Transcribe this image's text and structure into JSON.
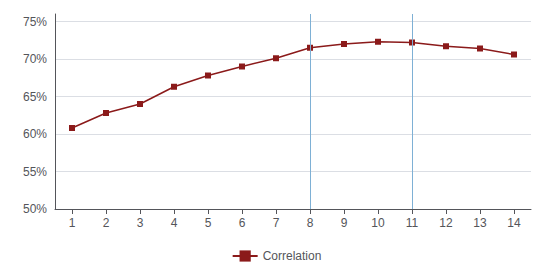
{
  "chart_data": {
    "type": "line",
    "x": [
      1,
      2,
      3,
      4,
      5,
      6,
      7,
      8,
      9,
      10,
      11,
      12,
      13,
      14
    ],
    "series": [
      {
        "name": "Correlation",
        "color": "#8B1A1A",
        "marker": "square",
        "values": [
          0.608,
          0.628,
          0.64,
          0.663,
          0.678,
          0.69,
          0.701,
          0.715,
          0.72,
          0.723,
          0.722,
          0.717,
          0.714,
          0.706
        ]
      }
    ],
    "vlines": {
      "x": [
        8,
        11
      ],
      "color": "#7EB0D5"
    },
    "xlim": [
      0.5,
      14.5
    ],
    "xticks": [
      1,
      2,
      3,
      4,
      5,
      6,
      7,
      8,
      9,
      10,
      11,
      12,
      13,
      14
    ],
    "ylim": [
      0.5,
      0.76
    ],
    "yticks": [
      {
        "value": 0.5,
        "label": "50%"
      },
      {
        "value": 0.55,
        "label": "55%"
      },
      {
        "value": 0.6,
        "label": "60%"
      },
      {
        "value": 0.65,
        "label": "65%"
      },
      {
        "value": 0.7,
        "label": "70%"
      },
      {
        "value": 0.75,
        "label": "75%"
      }
    ],
    "grid": true,
    "legend": "bottom"
  }
}
